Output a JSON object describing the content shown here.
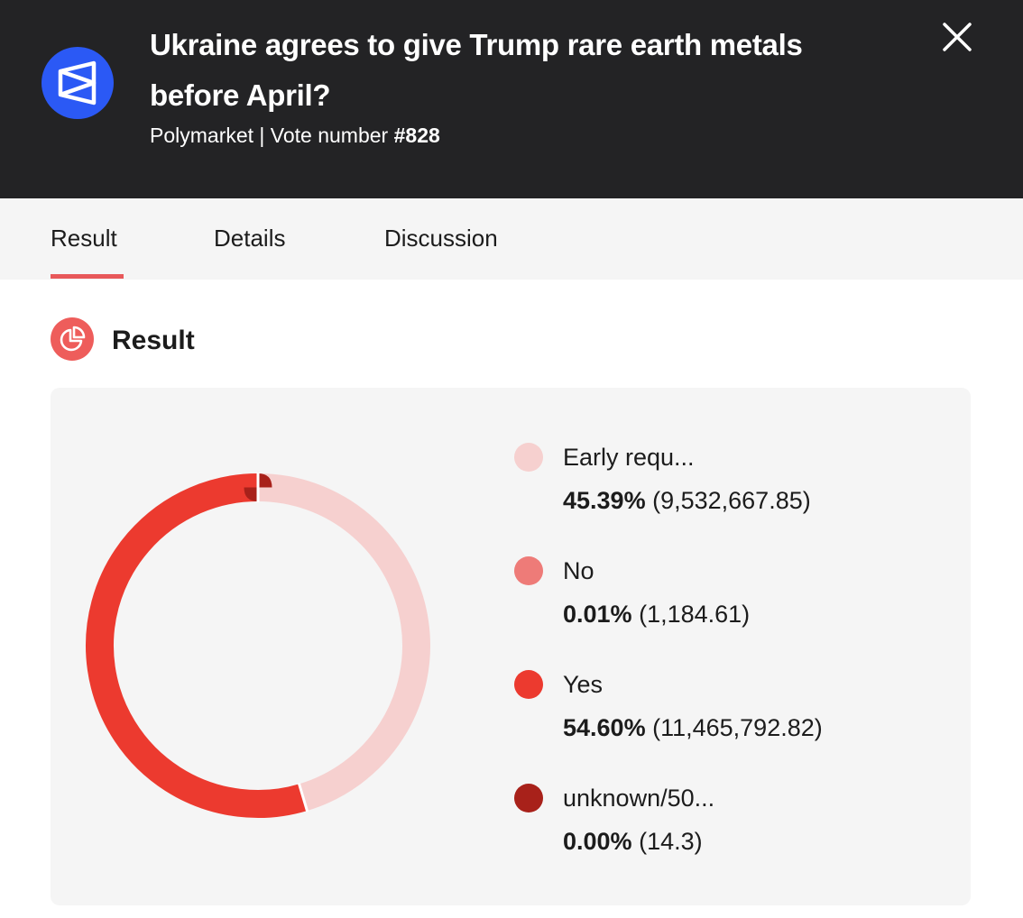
{
  "header": {
    "logo_icon": "polymarket-logo-icon",
    "title": "Ukraine agrees to give Trump rare earth metals before April?",
    "subtitle_prefix": "Polymarket | Vote number ",
    "vote_number": "#828",
    "close_icon": "close-icon"
  },
  "tabs": [
    {
      "label": "Result",
      "active": true
    },
    {
      "label": "Details",
      "active": false
    },
    {
      "label": "Discussion",
      "active": false
    }
  ],
  "section": {
    "icon": "pie-chart-icon",
    "title": "Result"
  },
  "colors": {
    "header_bg": "#232325",
    "logo_bg": "#2b59f5",
    "accent": "#e8585a"
  },
  "chart_data": {
    "type": "pie",
    "categories": [
      "Early requ...",
      "No",
      "Yes",
      "unknown/50..."
    ],
    "percent_labels": [
      "45.39%",
      "0.01%",
      "54.60%",
      "0.00%"
    ],
    "value_labels": [
      "(9,532,667.85)",
      "(1,184.61)",
      "(11,465,792.82)",
      "(14.3)"
    ],
    "values": [
      9532667.85,
      1184.61,
      11465792.82,
      14.3
    ],
    "colors": [
      "#f6d0cf",
      "#ee7b78",
      "#ec3a2f",
      "#a8211a"
    ],
    "legend": "right"
  }
}
